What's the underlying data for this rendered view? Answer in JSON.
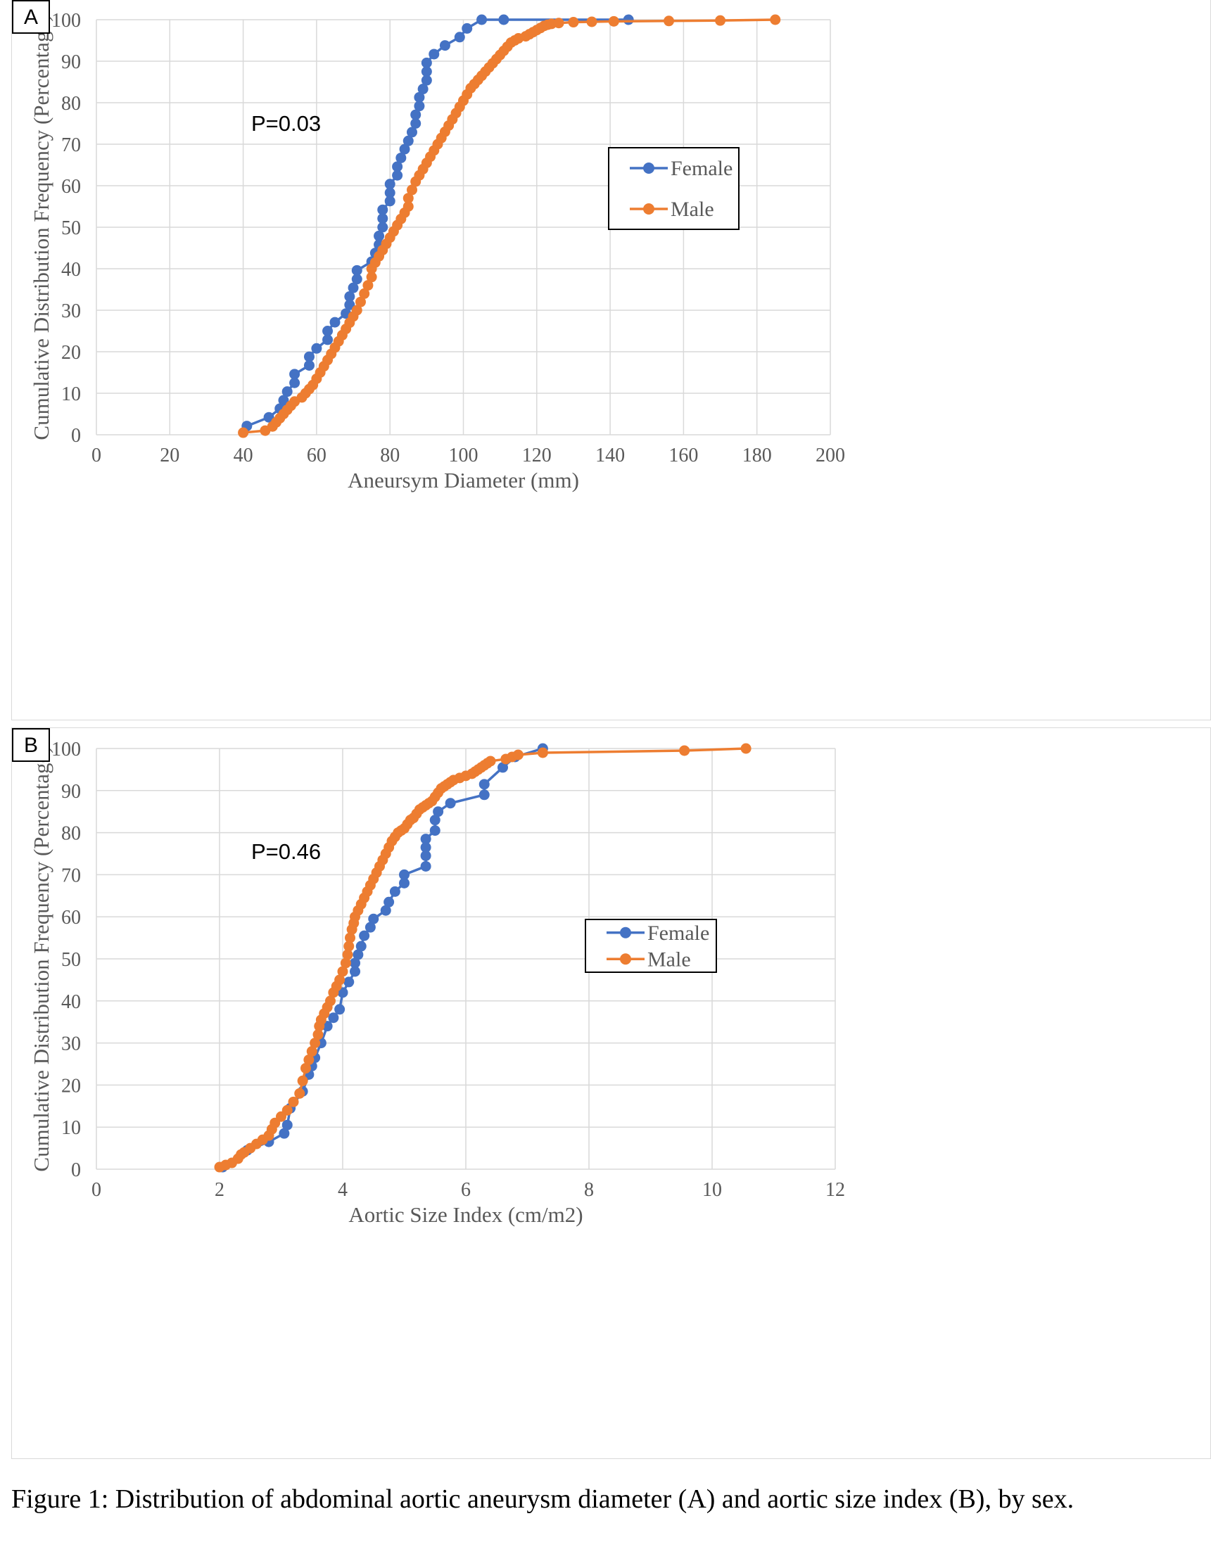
{
  "colors": {
    "female": "#4472C4",
    "male": "#ED7D31",
    "grid": "#d9d9d9",
    "text": "#595959"
  },
  "caption": "Figure 1: Distribution of abdominal aortic aneurysm diameter (A) and aortic size index (B), by sex.",
  "chart_data": [
    {
      "type": "line",
      "panel_label": "A",
      "annotation": "P=0.03",
      "title": "",
      "xlabel": "Aneursym Diameter (mm)",
      "ylabel": "Cumulative Distribution Frequency (Percentage)",
      "xlim": [
        0,
        200
      ],
      "ylim": [
        0,
        100
      ],
      "x_ticks": [
        "0",
        "20",
        "40",
        "60",
        "80",
        "100",
        "120",
        "140",
        "160",
        "180",
        "200"
      ],
      "y_ticks": [
        "0",
        "10",
        "20",
        "30",
        "40",
        "50",
        "60",
        "70",
        "80",
        "90",
        "100"
      ],
      "grid": true,
      "legend_position": "right",
      "markers": true,
      "series": [
        {
          "name": "Female",
          "color": "#4472C4",
          "x": [
            41,
            47,
            50,
            51,
            52,
            54,
            54,
            58,
            58,
            60,
            63,
            63,
            65,
            68,
            69,
            69,
            70,
            71,
            71,
            75,
            76,
            77,
            77,
            78,
            78,
            78,
            80,
            80,
            80,
            82,
            82,
            83,
            84,
            85,
            86,
            87,
            87,
            88,
            88,
            89,
            90,
            90,
            90,
            92,
            95,
            99,
            101,
            105,
            111,
            145
          ],
          "y": [
            2.1,
            4.2,
            6.3,
            8.3,
            10.4,
            12.5,
            14.6,
            16.7,
            18.8,
            20.8,
            22.9,
            25.0,
            27.1,
            29.2,
            31.3,
            33.3,
            35.4,
            37.5,
            39.6,
            41.7,
            43.8,
            45.8,
            47.9,
            50.0,
            52.1,
            54.2,
            56.3,
            58.3,
            60.4,
            62.5,
            64.6,
            66.7,
            68.8,
            70.8,
            72.9,
            75.0,
            77.1,
            79.2,
            81.3,
            83.3,
            85.4,
            87.5,
            89.6,
            91.7,
            93.8,
            95.8,
            97.9,
            100,
            100,
            100
          ]
        },
        {
          "name": "Male",
          "color": "#ED7D31",
          "x": [
            40,
            46,
            48,
            49,
            50,
            51,
            52,
            53,
            54,
            56,
            57,
            58,
            59,
            60,
            61,
            62,
            63,
            64,
            65,
            66,
            67,
            68,
            69,
            70,
            71,
            72,
            73,
            74,
            75,
            75,
            76,
            77,
            78,
            79,
            80,
            81,
            82,
            83,
            84,
            85,
            85,
            86,
            87,
            88,
            89,
            90,
            91,
            92,
            93,
            94,
            95,
            96,
            97,
            98,
            99,
            100,
            101,
            102,
            103,
            104,
            105,
            106,
            107,
            108,
            109,
            110,
            111,
            112,
            113,
            114,
            115,
            117,
            118,
            119,
            120,
            121,
            122,
            123,
            124,
            126,
            130,
            135,
            141,
            156,
            170,
            185
          ],
          "y": [
            0.5,
            1.0,
            2.0,
            3.0,
            4.0,
            5.0,
            6.0,
            7.0,
            8.0,
            9.0,
            10.0,
            11.0,
            12.0,
            13.5,
            15.0,
            16.5,
            18.0,
            19.5,
            21.0,
            22.5,
            24.0,
            25.5,
            27.0,
            28.5,
            30.0,
            32.0,
            34.0,
            36.0,
            38.0,
            40.0,
            41.5,
            43.0,
            44.5,
            46.0,
            47.5,
            49.0,
            50.5,
            52.0,
            53.5,
            55.0,
            57.0,
            59.0,
            61.0,
            62.5,
            64.0,
            65.5,
            67.0,
            68.5,
            70.0,
            71.5,
            73.0,
            74.5,
            76.0,
            77.5,
            79.0,
            80.5,
            82.0,
            83.5,
            84.5,
            85.5,
            86.5,
            87.5,
            88.5,
            89.5,
            90.5,
            91.5,
            92.5,
            93.5,
            94.5,
            95.0,
            95.5,
            96.0,
            96.5,
            97.0,
            97.5,
            98.0,
            98.5,
            98.8,
            99.0,
            99.2,
            99.4,
            99.5,
            99.6,
            99.7,
            99.8,
            100
          ]
        }
      ]
    },
    {
      "type": "line",
      "panel_label": "B",
      "annotation": "P=0.46",
      "title": "",
      "xlabel": "Aortic Size Index (cm/m2)",
      "ylabel": "Cumulative Distribution Frequency (Percentage)",
      "xlim": [
        0,
        12
      ],
      "ylim": [
        0,
        100
      ],
      "x_ticks": [
        "0",
        "2",
        "4",
        "6",
        "8",
        "10",
        "12"
      ],
      "y_ticks": [
        "0",
        "10",
        "20",
        "30",
        "40",
        "50",
        "60",
        "70",
        "80",
        "90",
        "100"
      ],
      "grid": true,
      "legend_position": "right",
      "markers": true,
      "series": [
        {
          "name": "Female",
          "color": "#4472C4",
          "x": [
            2.05,
            2.45,
            2.8,
            3.05,
            3.1,
            3.15,
            3.35,
            3.45,
            3.5,
            3.55,
            3.65,
            3.75,
            3.85,
            3.95,
            4.0,
            4.1,
            4.2,
            4.2,
            4.25,
            4.3,
            4.35,
            4.45,
            4.5,
            4.7,
            4.75,
            4.85,
            5.0,
            5.0,
            5.35,
            5.35,
            5.35,
            5.35,
            5.5,
            5.5,
            5.55,
            5.75,
            6.3,
            6.3,
            6.6,
            6.8,
            7.25
          ],
          "y": [
            0.5,
            4.5,
            6.5,
            8.5,
            10.5,
            14.5,
            18.5,
            22.5,
            24.5,
            26.5,
            30.0,
            34.0,
            36.0,
            38.0,
            42.0,
            44.5,
            47.0,
            49.0,
            51.0,
            53.0,
            55.5,
            57.5,
            59.5,
            61.5,
            63.5,
            66.0,
            68.0,
            70.0,
            72.0,
            74.5,
            76.5,
            78.5,
            80.5,
            83.0,
            85.0,
            87.0,
            89.0,
            91.5,
            95.5,
            98.0,
            100
          ]
        },
        {
          "name": "Male",
          "color": "#ED7D31",
          "x": [
            2.0,
            2.1,
            2.2,
            2.3,
            2.35,
            2.4,
            2.5,
            2.6,
            2.7,
            2.8,
            2.85,
            2.9,
            3.0,
            3.1,
            3.2,
            3.3,
            3.35,
            3.4,
            3.45,
            3.5,
            3.55,
            3.6,
            3.62,
            3.65,
            3.7,
            3.75,
            3.8,
            3.85,
            3.9,
            3.95,
            4.0,
            4.05,
            4.08,
            4.1,
            4.12,
            4.15,
            4.18,
            4.2,
            4.25,
            4.3,
            4.35,
            4.4,
            4.45,
            4.5,
            4.55,
            4.6,
            4.65,
            4.7,
            4.75,
            4.8,
            4.85,
            4.9,
            4.95,
            5.0,
            5.05,
            5.1,
            5.15,
            5.2,
            5.25,
            5.3,
            5.35,
            5.4,
            5.45,
            5.5,
            5.55,
            5.6,
            5.65,
            5.7,
            5.75,
            5.8,
            5.9,
            6.0,
            6.1,
            6.15,
            6.2,
            6.25,
            6.3,
            6.35,
            6.4,
            6.65,
            6.75,
            6.85,
            7.25,
            9.55,
            10.55
          ],
          "y": [
            0.5,
            1.0,
            1.5,
            2.5,
            3.5,
            4.0,
            5.0,
            6.0,
            7.0,
            8.0,
            9.5,
            11.0,
            12.5,
            14.0,
            16.0,
            18.0,
            21.0,
            24.0,
            26.0,
            28.0,
            30.0,
            32.0,
            34.0,
            35.5,
            37.0,
            38.5,
            40.0,
            42.0,
            43.5,
            45.0,
            47.0,
            49.0,
            51.0,
            53.0,
            55.0,
            57.0,
            58.5,
            60.0,
            61.5,
            63.0,
            64.5,
            66.0,
            67.5,
            69.0,
            70.5,
            72.0,
            73.5,
            75.0,
            76.5,
            78.0,
            79.0,
            80.0,
            80.5,
            81.0,
            82.0,
            83.0,
            83.5,
            84.5,
            85.5,
            86.0,
            86.5,
            87.0,
            87.5,
            88.5,
            89.5,
            90.5,
            91.0,
            91.5,
            92.0,
            92.5,
            93.0,
            93.5,
            94.0,
            94.5,
            95.0,
            95.5,
            96.0,
            96.5,
            97.0,
            97.5,
            98.0,
            98.5,
            99.0,
            99.5,
            100
          ]
        }
      ]
    }
  ]
}
